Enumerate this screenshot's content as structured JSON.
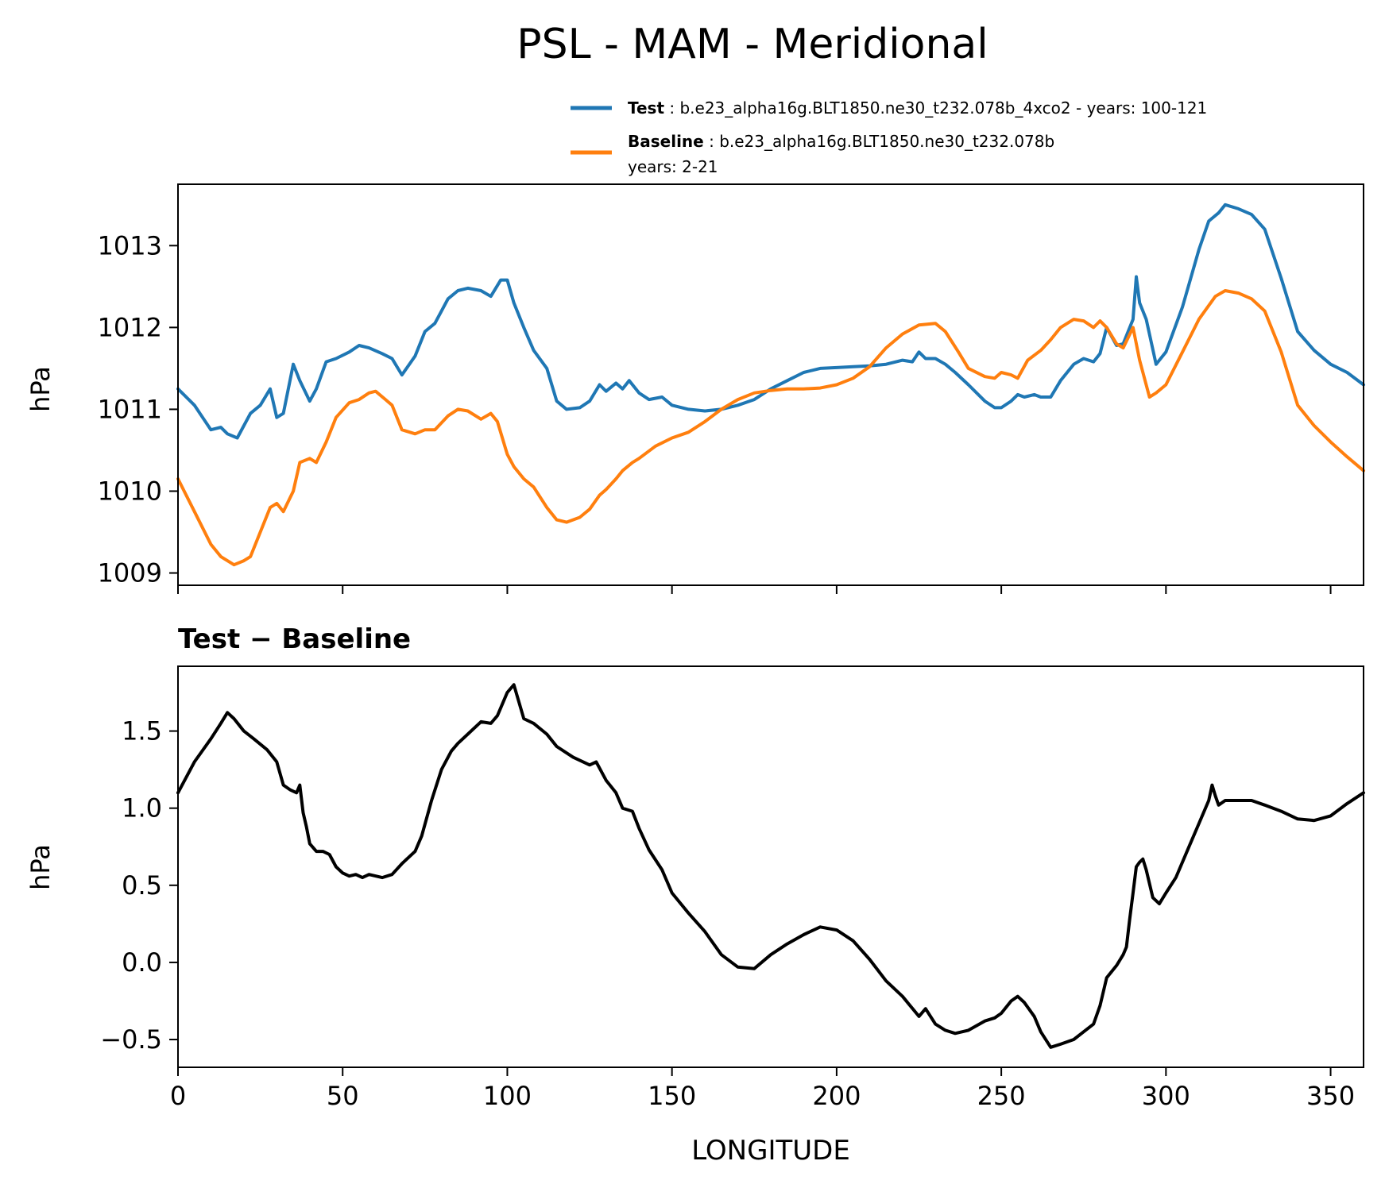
{
  "figure": {
    "title": "PSL - MAM - Meridional"
  },
  "legend": [
    {
      "bold": "Test",
      "text": ": b.e23_alpha16g.BLT1850.ne30_t232.078b_4xco2 - years: 100-121",
      "text2": "",
      "color": "#1f77b4"
    },
    {
      "bold": "Baseline",
      "text": ": b.e23_alpha16g.BLT1850.ne30_t232.078b",
      "text2": "years: 2-21",
      "color": "#ff7f0e"
    }
  ],
  "chart_data": [
    {
      "type": "line",
      "title": "",
      "xlabel": "",
      "ylabel": "hPa",
      "xlim": [
        0,
        360
      ],
      "ylim": [
        1008.85,
        1013.75
      ],
      "xticks": [
        0,
        50,
        100,
        150,
        200,
        250,
        300,
        350
      ],
      "yticks": [
        1009,
        1010,
        1011,
        1012,
        1013
      ],
      "ytick_labels": [
        "1009",
        "1010",
        "1011",
        "1012",
        "1013"
      ],
      "grid": false,
      "series": [
        {
          "name": "Test",
          "color": "#1f77b4",
          "x": [
            0,
            5,
            10,
            13,
            15,
            18,
            22,
            25,
            28,
            30,
            32,
            35,
            37,
            40,
            42,
            45,
            48,
            52,
            55,
            58,
            62,
            65,
            68,
            72,
            75,
            78,
            80,
            82,
            85,
            88,
            92,
            95,
            98,
            100,
            102,
            105,
            108,
            112,
            115,
            118,
            122,
            125,
            128,
            130,
            133,
            135,
            137,
            140,
            143,
            147,
            150,
            155,
            160,
            165,
            170,
            175,
            180,
            185,
            190,
            195,
            200,
            205,
            210,
            215,
            220,
            223,
            225,
            227,
            230,
            233,
            236,
            240,
            245,
            248,
            250,
            253,
            255,
            257,
            260,
            262,
            265,
            268,
            272,
            275,
            278,
            280,
            282,
            285,
            287,
            290,
            291,
            292,
            294,
            297,
            300,
            305,
            310,
            313,
            316,
            318,
            322,
            326,
            330,
            335,
            340,
            345,
            350,
            355,
            360
          ],
          "y": [
            1011.25,
            1011.05,
            1010.75,
            1010.78,
            1010.7,
            1010.65,
            1010.95,
            1011.05,
            1011.25,
            1010.9,
            1010.95,
            1011.55,
            1011.35,
            1011.1,
            1011.25,
            1011.58,
            1011.62,
            1011.7,
            1011.78,
            1011.75,
            1011.68,
            1011.62,
            1011.42,
            1011.65,
            1011.95,
            1012.05,
            1012.2,
            1012.35,
            1012.45,
            1012.48,
            1012.45,
            1012.38,
            1012.58,
            1012.58,
            1012.3,
            1012.0,
            1011.72,
            1011.5,
            1011.1,
            1011.0,
            1011.02,
            1011.1,
            1011.3,
            1011.22,
            1011.32,
            1011.25,
            1011.35,
            1011.2,
            1011.12,
            1011.15,
            1011.05,
            1011.0,
            1010.98,
            1011.0,
            1011.05,
            1011.12,
            1011.25,
            1011.35,
            1011.45,
            1011.5,
            1011.51,
            1011.52,
            1011.53,
            1011.55,
            1011.6,
            1011.58,
            1011.7,
            1011.62,
            1011.62,
            1011.55,
            1011.45,
            1011.3,
            1011.1,
            1011.02,
            1011.02,
            1011.1,
            1011.18,
            1011.15,
            1011.18,
            1011.15,
            1011.15,
            1011.35,
            1011.55,
            1011.62,
            1011.58,
            1011.68,
            1012.0,
            1011.78,
            1011.8,
            1012.1,
            1012.62,
            1012.3,
            1012.1,
            1011.55,
            1011.7,
            1012.25,
            1012.95,
            1013.3,
            1013.4,
            1013.5,
            1013.45,
            1013.38,
            1013.2,
            1012.6,
            1011.95,
            1011.72,
            1011.55,
            1011.45,
            1011.3
          ]
        },
        {
          "name": "Baseline",
          "color": "#ff7f0e",
          "x": [
            0,
            5,
            10,
            13,
            15,
            17,
            20,
            22,
            25,
            28,
            30,
            32,
            35,
            37,
            40,
            42,
            45,
            48,
            52,
            55,
            58,
            60,
            63,
            65,
            68,
            72,
            75,
            78,
            82,
            85,
            88,
            92,
            95,
            97,
            100,
            102,
            105,
            108,
            112,
            115,
            118,
            122,
            125,
            128,
            130,
            133,
            135,
            138,
            140,
            145,
            150,
            155,
            160,
            165,
            170,
            175,
            180,
            185,
            190,
            195,
            200,
            205,
            210,
            215,
            220,
            225,
            230,
            233,
            237,
            240,
            245,
            248,
            250,
            253,
            255,
            258,
            262,
            265,
            268,
            272,
            275,
            278,
            280,
            282,
            285,
            287,
            290,
            292,
            295,
            297,
            300,
            305,
            310,
            315,
            318,
            322,
            326,
            330,
            335,
            340,
            345,
            350,
            355,
            360
          ],
          "y": [
            1010.15,
            1009.75,
            1009.35,
            1009.2,
            1009.15,
            1009.1,
            1009.15,
            1009.2,
            1009.5,
            1009.8,
            1009.85,
            1009.75,
            1010.0,
            1010.35,
            1010.4,
            1010.35,
            1010.6,
            1010.9,
            1011.08,
            1011.12,
            1011.2,
            1011.22,
            1011.12,
            1011.05,
            1010.75,
            1010.7,
            1010.75,
            1010.75,
            1010.92,
            1011.0,
            1010.98,
            1010.88,
            1010.95,
            1010.85,
            1010.45,
            1010.3,
            1010.15,
            1010.05,
            1009.8,
            1009.65,
            1009.62,
            1009.68,
            1009.78,
            1009.95,
            1010.02,
            1010.15,
            1010.25,
            1010.35,
            1010.4,
            1010.55,
            1010.65,
            1010.72,
            1010.85,
            1011.0,
            1011.12,
            1011.2,
            1011.23,
            1011.25,
            1011.25,
            1011.26,
            1011.3,
            1011.38,
            1011.52,
            1011.75,
            1011.92,
            1012.03,
            1012.05,
            1011.95,
            1011.7,
            1011.5,
            1011.4,
            1011.38,
            1011.45,
            1011.42,
            1011.38,
            1011.6,
            1011.72,
            1011.85,
            1012.0,
            1012.1,
            1012.08,
            1012.0,
            1012.08,
            1012.0,
            1011.8,
            1011.75,
            1012.0,
            1011.6,
            1011.15,
            1011.2,
            1011.3,
            1011.7,
            1012.1,
            1012.38,
            1012.45,
            1012.42,
            1012.35,
            1012.2,
            1011.7,
            1011.05,
            1010.8,
            1010.6,
            1010.42,
            1010.25
          ]
        }
      ]
    },
    {
      "type": "line",
      "title": "Test − Baseline",
      "xlabel": "LONGITUDE",
      "ylabel": "hPa",
      "xlim": [
        0,
        360
      ],
      "ylim": [
        -0.68,
        1.92
      ],
      "xticks": [
        0,
        50,
        100,
        150,
        200,
        250,
        300,
        350
      ],
      "xtick_labels": [
        "0",
        "50",
        "100",
        "150",
        "200",
        "250",
        "300",
        "350"
      ],
      "yticks": [
        -0.5,
        0.0,
        0.5,
        1.0,
        1.5
      ],
      "ytick_labels": [
        "−0.5",
        "0.0",
        "0.5",
        "1.0",
        "1.5"
      ],
      "grid": false,
      "series": [
        {
          "name": "",
          "color": "#000000",
          "x": [
            0,
            5,
            10,
            13,
            15,
            17,
            20,
            23,
            27,
            30,
            32,
            34,
            36,
            37,
            38,
            39,
            40,
            42,
            44,
            46,
            48,
            50,
            52,
            54,
            56,
            58,
            62,
            65,
            68,
            72,
            74,
            77,
            80,
            83,
            85,
            88,
            92,
            95,
            97,
            100,
            102,
            105,
            108,
            112,
            115,
            120,
            125,
            127,
            130,
            133,
            135,
            138,
            140,
            143,
            147,
            150,
            155,
            160,
            165,
            170,
            175,
            180,
            185,
            190,
            195,
            200,
            205,
            210,
            215,
            220,
            225,
            227,
            230,
            233,
            236,
            240,
            245,
            248,
            250,
            253,
            255,
            257,
            260,
            262,
            265,
            268,
            272,
            275,
            278,
            280,
            282,
            285,
            287,
            288,
            289,
            290,
            291,
            292,
            293,
            294,
            296,
            298,
            300,
            303,
            307,
            310,
            313,
            314,
            315,
            316,
            318,
            322,
            326,
            330,
            335,
            340,
            345,
            350,
            355,
            360
          ],
          "y": [
            1.1,
            1.3,
            1.45,
            1.55,
            1.62,
            1.58,
            1.5,
            1.45,
            1.38,
            1.3,
            1.15,
            1.12,
            1.1,
            1.15,
            0.97,
            0.88,
            0.77,
            0.72,
            0.72,
            0.7,
            0.62,
            0.58,
            0.56,
            0.57,
            0.55,
            0.57,
            0.55,
            0.57,
            0.64,
            0.72,
            0.82,
            1.05,
            1.25,
            1.37,
            1.42,
            1.48,
            1.56,
            1.55,
            1.6,
            1.75,
            1.8,
            1.58,
            1.55,
            1.48,
            1.4,
            1.33,
            1.28,
            1.3,
            1.18,
            1.1,
            1.0,
            0.98,
            0.87,
            0.73,
            0.6,
            0.45,
            0.32,
            0.2,
            0.05,
            -0.03,
            -0.04,
            0.05,
            0.12,
            0.18,
            0.23,
            0.21,
            0.14,
            0.02,
            -0.12,
            -0.22,
            -0.35,
            -0.3,
            -0.4,
            -0.44,
            -0.46,
            -0.44,
            -0.38,
            -0.36,
            -0.33,
            -0.25,
            -0.22,
            -0.26,
            -0.35,
            -0.45,
            -0.55,
            -0.53,
            -0.5,
            -0.45,
            -0.4,
            -0.28,
            -0.1,
            -0.02,
            0.05,
            0.1,
            0.28,
            0.45,
            0.62,
            0.65,
            0.67,
            0.6,
            0.42,
            0.38,
            0.45,
            0.55,
            0.75,
            0.9,
            1.05,
            1.15,
            1.08,
            1.02,
            1.05,
            1.05,
            1.05,
            1.02,
            0.98,
            0.93,
            0.92,
            0.95,
            1.03,
            1.1
          ]
        }
      ]
    }
  ]
}
